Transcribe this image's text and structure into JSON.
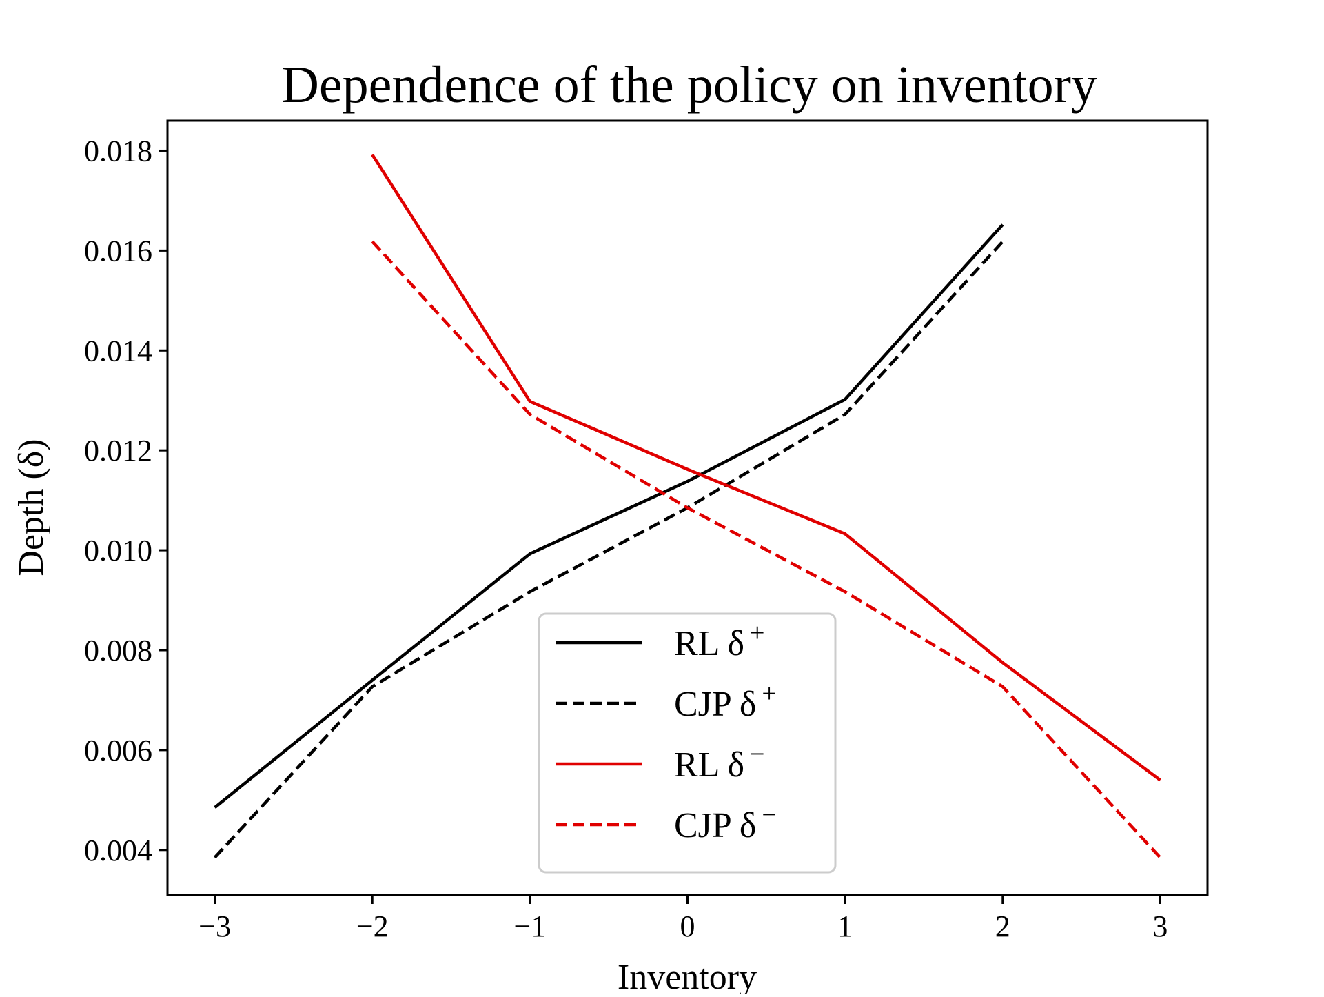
{
  "chart_data": {
    "type": "line",
    "title": "Dependence of the policy on inventory",
    "xlabel": "Inventory",
    "ylabel": "Depth (δ)",
    "xlim": [
      -3.3,
      3.3
    ],
    "ylim": [
      0.0031,
      0.0186
    ],
    "x_ticks": [
      -3,
      -2,
      -1,
      0,
      1,
      2,
      3
    ],
    "x_tick_labels": [
      "−3",
      "−2",
      "−1",
      "0",
      "1",
      "2",
      "3"
    ],
    "y_ticks": [
      0.004,
      0.006,
      0.008,
      0.01,
      0.012,
      0.014,
      0.016,
      0.018
    ],
    "y_tick_labels": [
      "0.004",
      "0.006",
      "0.008",
      "0.010",
      "0.012",
      "0.014",
      "0.016",
      "0.018"
    ],
    "grid": false,
    "legend_position": "lower-center",
    "series": [
      {
        "name": "RL δ⁺",
        "legend": {
          "base": "RL δ",
          "sup": "+"
        },
        "color": "#000000",
        "style": "solid",
        "x": [
          -3,
          -2,
          -1,
          0,
          1,
          2
        ],
        "values": [
          0.00485,
          0.0074,
          0.00993,
          0.01138,
          0.01302,
          0.01652
        ]
      },
      {
        "name": "CJP δ⁺",
        "legend": {
          "base": "CJP δ",
          "sup": "+"
        },
        "color": "#000000",
        "style": "dashed",
        "x": [
          -3,
          -2,
          -1,
          0,
          1,
          2
        ],
        "values": [
          0.00385,
          0.00727,
          0.00917,
          0.01085,
          0.01272,
          0.01618
        ]
      },
      {
        "name": "RL δ⁻",
        "legend": {
          "base": "RL δ",
          "sup": "−"
        },
        "color": "#e00000",
        "style": "solid",
        "x": [
          -2,
          -1,
          0,
          1,
          2,
          3
        ],
        "values": [
          0.01792,
          0.01298,
          0.01162,
          0.01033,
          0.00775,
          0.0054
        ]
      },
      {
        "name": "CJP δ⁻",
        "legend": {
          "base": "CJP δ",
          "sup": "−"
        },
        "color": "#e00000",
        "style": "dashed",
        "x": [
          -2,
          -1,
          0,
          1,
          2,
          3
        ],
        "values": [
          0.01618,
          0.01272,
          0.01085,
          0.00917,
          0.00727,
          0.00385
        ]
      }
    ]
  }
}
